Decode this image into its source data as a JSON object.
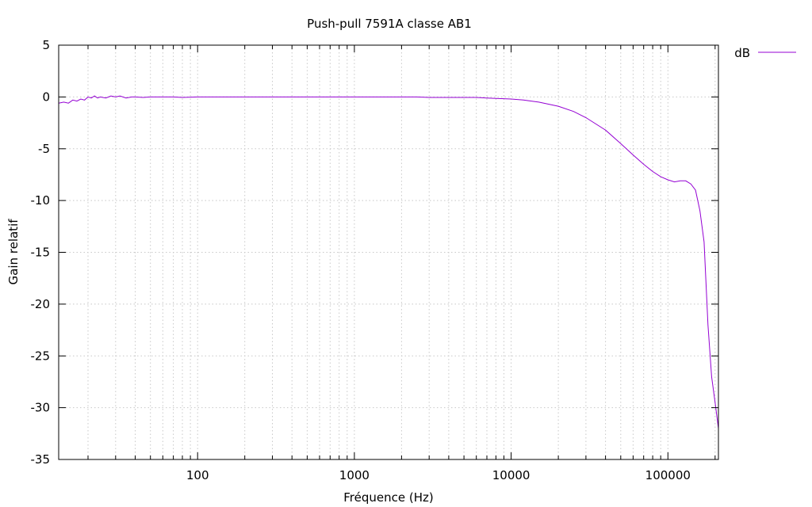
{
  "chart_data": {
    "type": "line",
    "title": "Push-pull 7591A classe AB1",
    "xlabel": "Fréquence (Hz)",
    "ylabel": "Gain relatif",
    "x_scale": "log",
    "xlim": [
      13,
      210000
    ],
    "ylim": [
      -35,
      5
    ],
    "x_ticks": [
      100,
      1000,
      10000,
      100000
    ],
    "x_tick_labels": [
      "100",
      "1000",
      "10000",
      "100000"
    ],
    "y_ticks": [
      5,
      0,
      -5,
      -10,
      -15,
      -20,
      -25,
      -30,
      -35
    ],
    "y_tick_labels": [
      "5",
      "0",
      "-5",
      "-10",
      "-15",
      "-20",
      "-25",
      "-30",
      "-35"
    ],
    "grid": true,
    "legend_position": "top-right-outside",
    "series": [
      {
        "name": "dB",
        "color": "#9400d3",
        "x": [
          13,
          14,
          15,
          16,
          17,
          18,
          19,
          20,
          21,
          22,
          23,
          24,
          26,
          28,
          30,
          32,
          35,
          38,
          40,
          45,
          50,
          60,
          70,
          80,
          100,
          150,
          200,
          300,
          500,
          700,
          1000,
          1500,
          2000,
          2500,
          3000,
          4000,
          5000,
          6000,
          7000,
          8000,
          10000,
          12000,
          15000,
          20000,
          25000,
          30000,
          40000,
          50000,
          60000,
          70000,
          80000,
          90000,
          100000,
          110000,
          120000,
          130000,
          140000,
          150000,
          160000,
          170000,
          180000,
          190000,
          200000,
          210000
        ],
        "values": [
          -0.6,
          -0.5,
          -0.6,
          -0.3,
          -0.4,
          -0.2,
          -0.3,
          0.0,
          -0.1,
          0.1,
          -0.1,
          0.0,
          -0.1,
          0.1,
          0.0,
          0.1,
          -0.1,
          0.0,
          0.0,
          -0.05,
          0.0,
          0.0,
          0.0,
          -0.05,
          0.0,
          0.0,
          0.0,
          0.0,
          0.0,
          0.0,
          0.0,
          0.0,
          0.0,
          0.0,
          -0.05,
          -0.05,
          -0.05,
          -0.05,
          -0.1,
          -0.15,
          -0.2,
          -0.3,
          -0.5,
          -0.9,
          -1.4,
          -2.0,
          -3.2,
          -4.5,
          -5.6,
          -6.5,
          -7.2,
          -7.7,
          -8.0,
          -8.2,
          -8.1,
          -8.1,
          -8.4,
          -9.0,
          -11.0,
          -14.0,
          -22.0,
          -27.0,
          -29.5,
          -32.0
        ]
      }
    ]
  }
}
